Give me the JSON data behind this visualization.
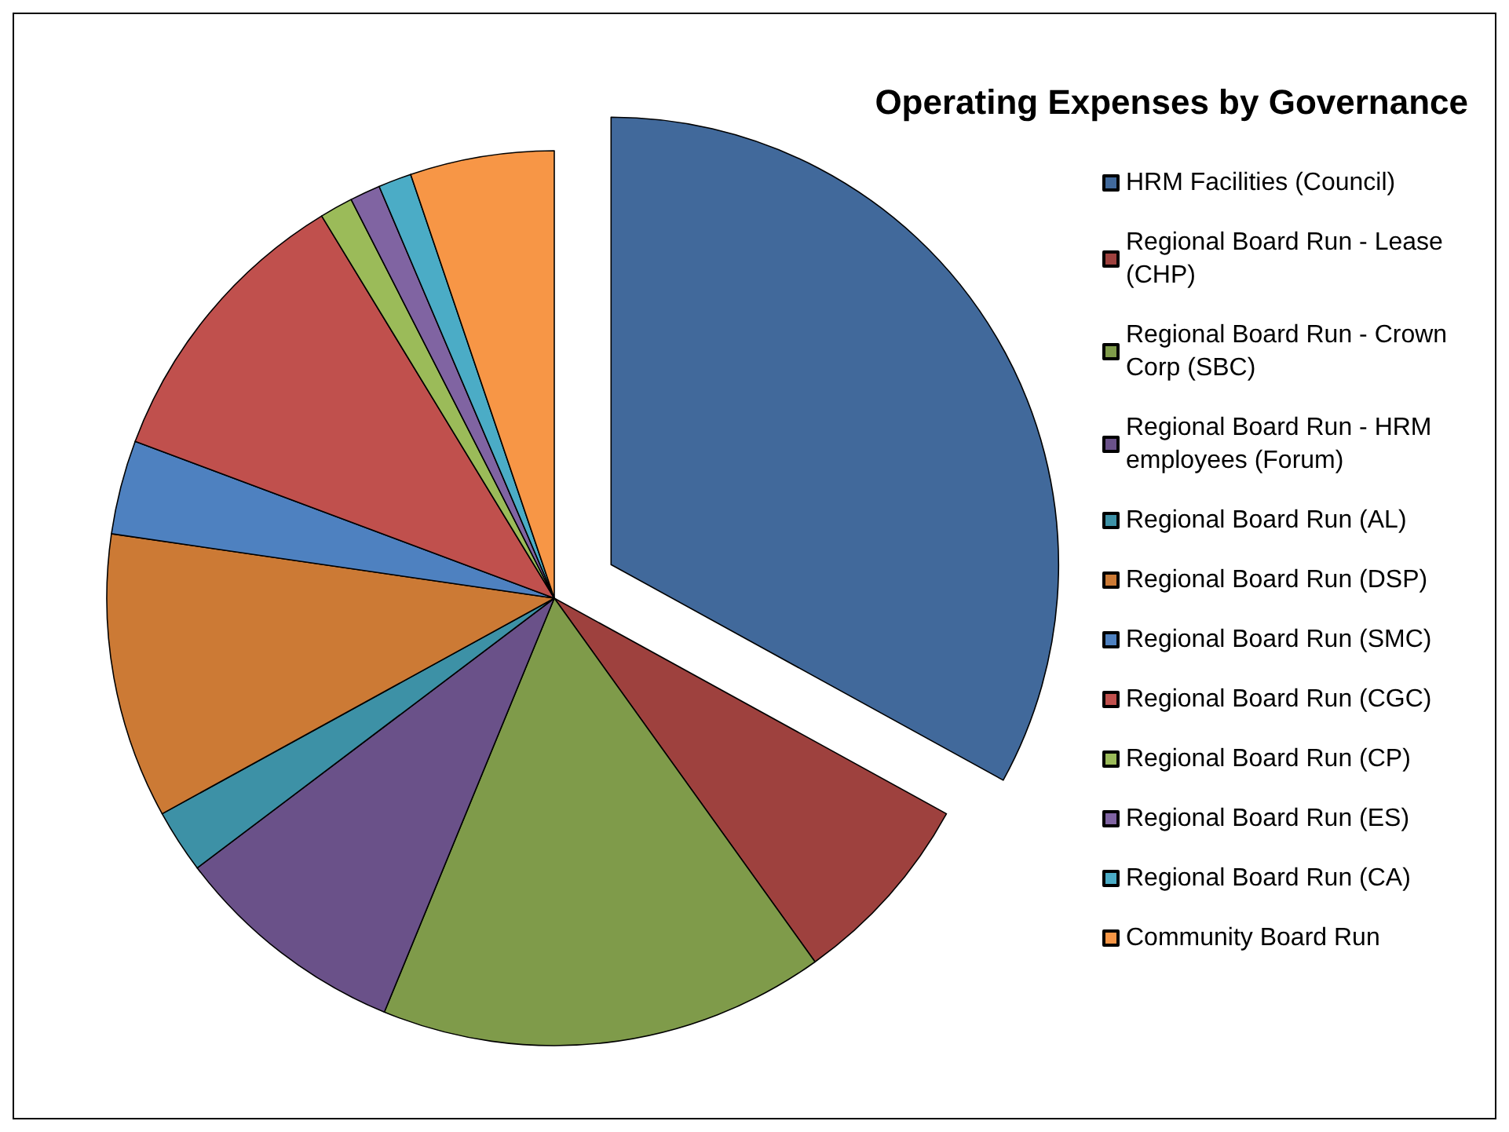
{
  "chart_data": {
    "type": "pie",
    "title": "Operating Expenses by Governance",
    "categories": [
      "HRM Facilities (Council)",
      "Regional Board Run - Lease (CHP)",
      "Regional Board Run - Crown Corp (SBC)",
      "Regional Board Run - HRM employees (Forum)",
      "Regional Board Run (AL)",
      "Regional Board Run (DSP)",
      "Regional Board Run (SMC)",
      "Regional Board Run (CGC)",
      "Regional Board Run (CP)",
      "Regional Board Run (ES)",
      "Regional Board Run (CA)",
      "Community Board Run"
    ],
    "values": [
      33.0,
      7.1,
      16.1,
      8.5,
      2.3,
      10.3,
      3.4,
      10.6,
      1.2,
      1.1,
      1.2,
      5.2
    ],
    "colors": [
      "#41699b",
      "#9e413e",
      "#7f9b4a",
      "#6a5189",
      "#3d91a6",
      "#cc7a35",
      "#4e81c0",
      "#c0504d",
      "#9bbb59",
      "#8064a2",
      "#4bacc6",
      "#f79646"
    ],
    "legend": "right"
  }
}
